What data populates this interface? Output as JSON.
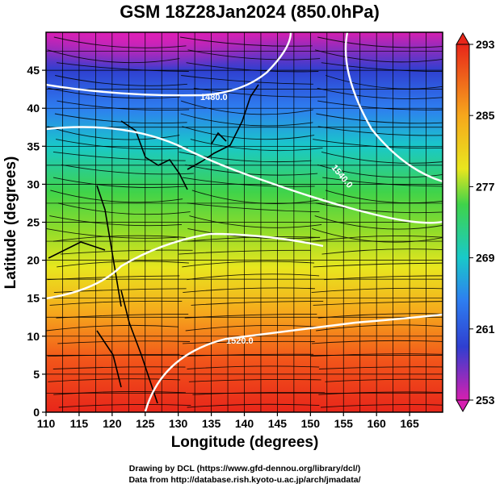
{
  "title": "GSM 18Z28Jan2024 (850.0hPa)",
  "x_axis": {
    "label": "Longitude (degrees)",
    "min": 110,
    "max": 170,
    "ticks": [
      "110",
      "115",
      "120",
      "125",
      "130",
      "135",
      "140",
      "145",
      "150",
      "155",
      "160",
      "165"
    ],
    "tick_values": [
      110,
      115,
      120,
      125,
      130,
      135,
      140,
      145,
      150,
      155,
      160,
      165
    ]
  },
  "y_axis": {
    "label": "Latitude  (degrees)",
    "min": 0,
    "max": 50,
    "ticks": [
      "0",
      "5",
      "10",
      "15",
      "20",
      "25",
      "30",
      "35",
      "40",
      "45"
    ],
    "tick_values": [
      0,
      5,
      10,
      15,
      20,
      25,
      30,
      35,
      40,
      45
    ]
  },
  "colorbar": {
    "min": 253,
    "max": 293,
    "labels": [
      "293",
      "285",
      "277",
      "269",
      "261",
      "253"
    ],
    "label_values": [
      293,
      285,
      277,
      269,
      261,
      253
    ]
  },
  "contours": [
    {
      "label": "1480.0",
      "value": 1480.0
    },
    {
      "label": "1520.0",
      "value": 1520.0
    },
    {
      "label": "1540.0",
      "value": 1540.0
    }
  ],
  "credits": [
    "Drawing by DCL (https://www.gfd-dennou.org/library/dcl/)",
    "Data from http://database.rish.kyoto-u.ac.jp/arch/jmadata/"
  ]
}
